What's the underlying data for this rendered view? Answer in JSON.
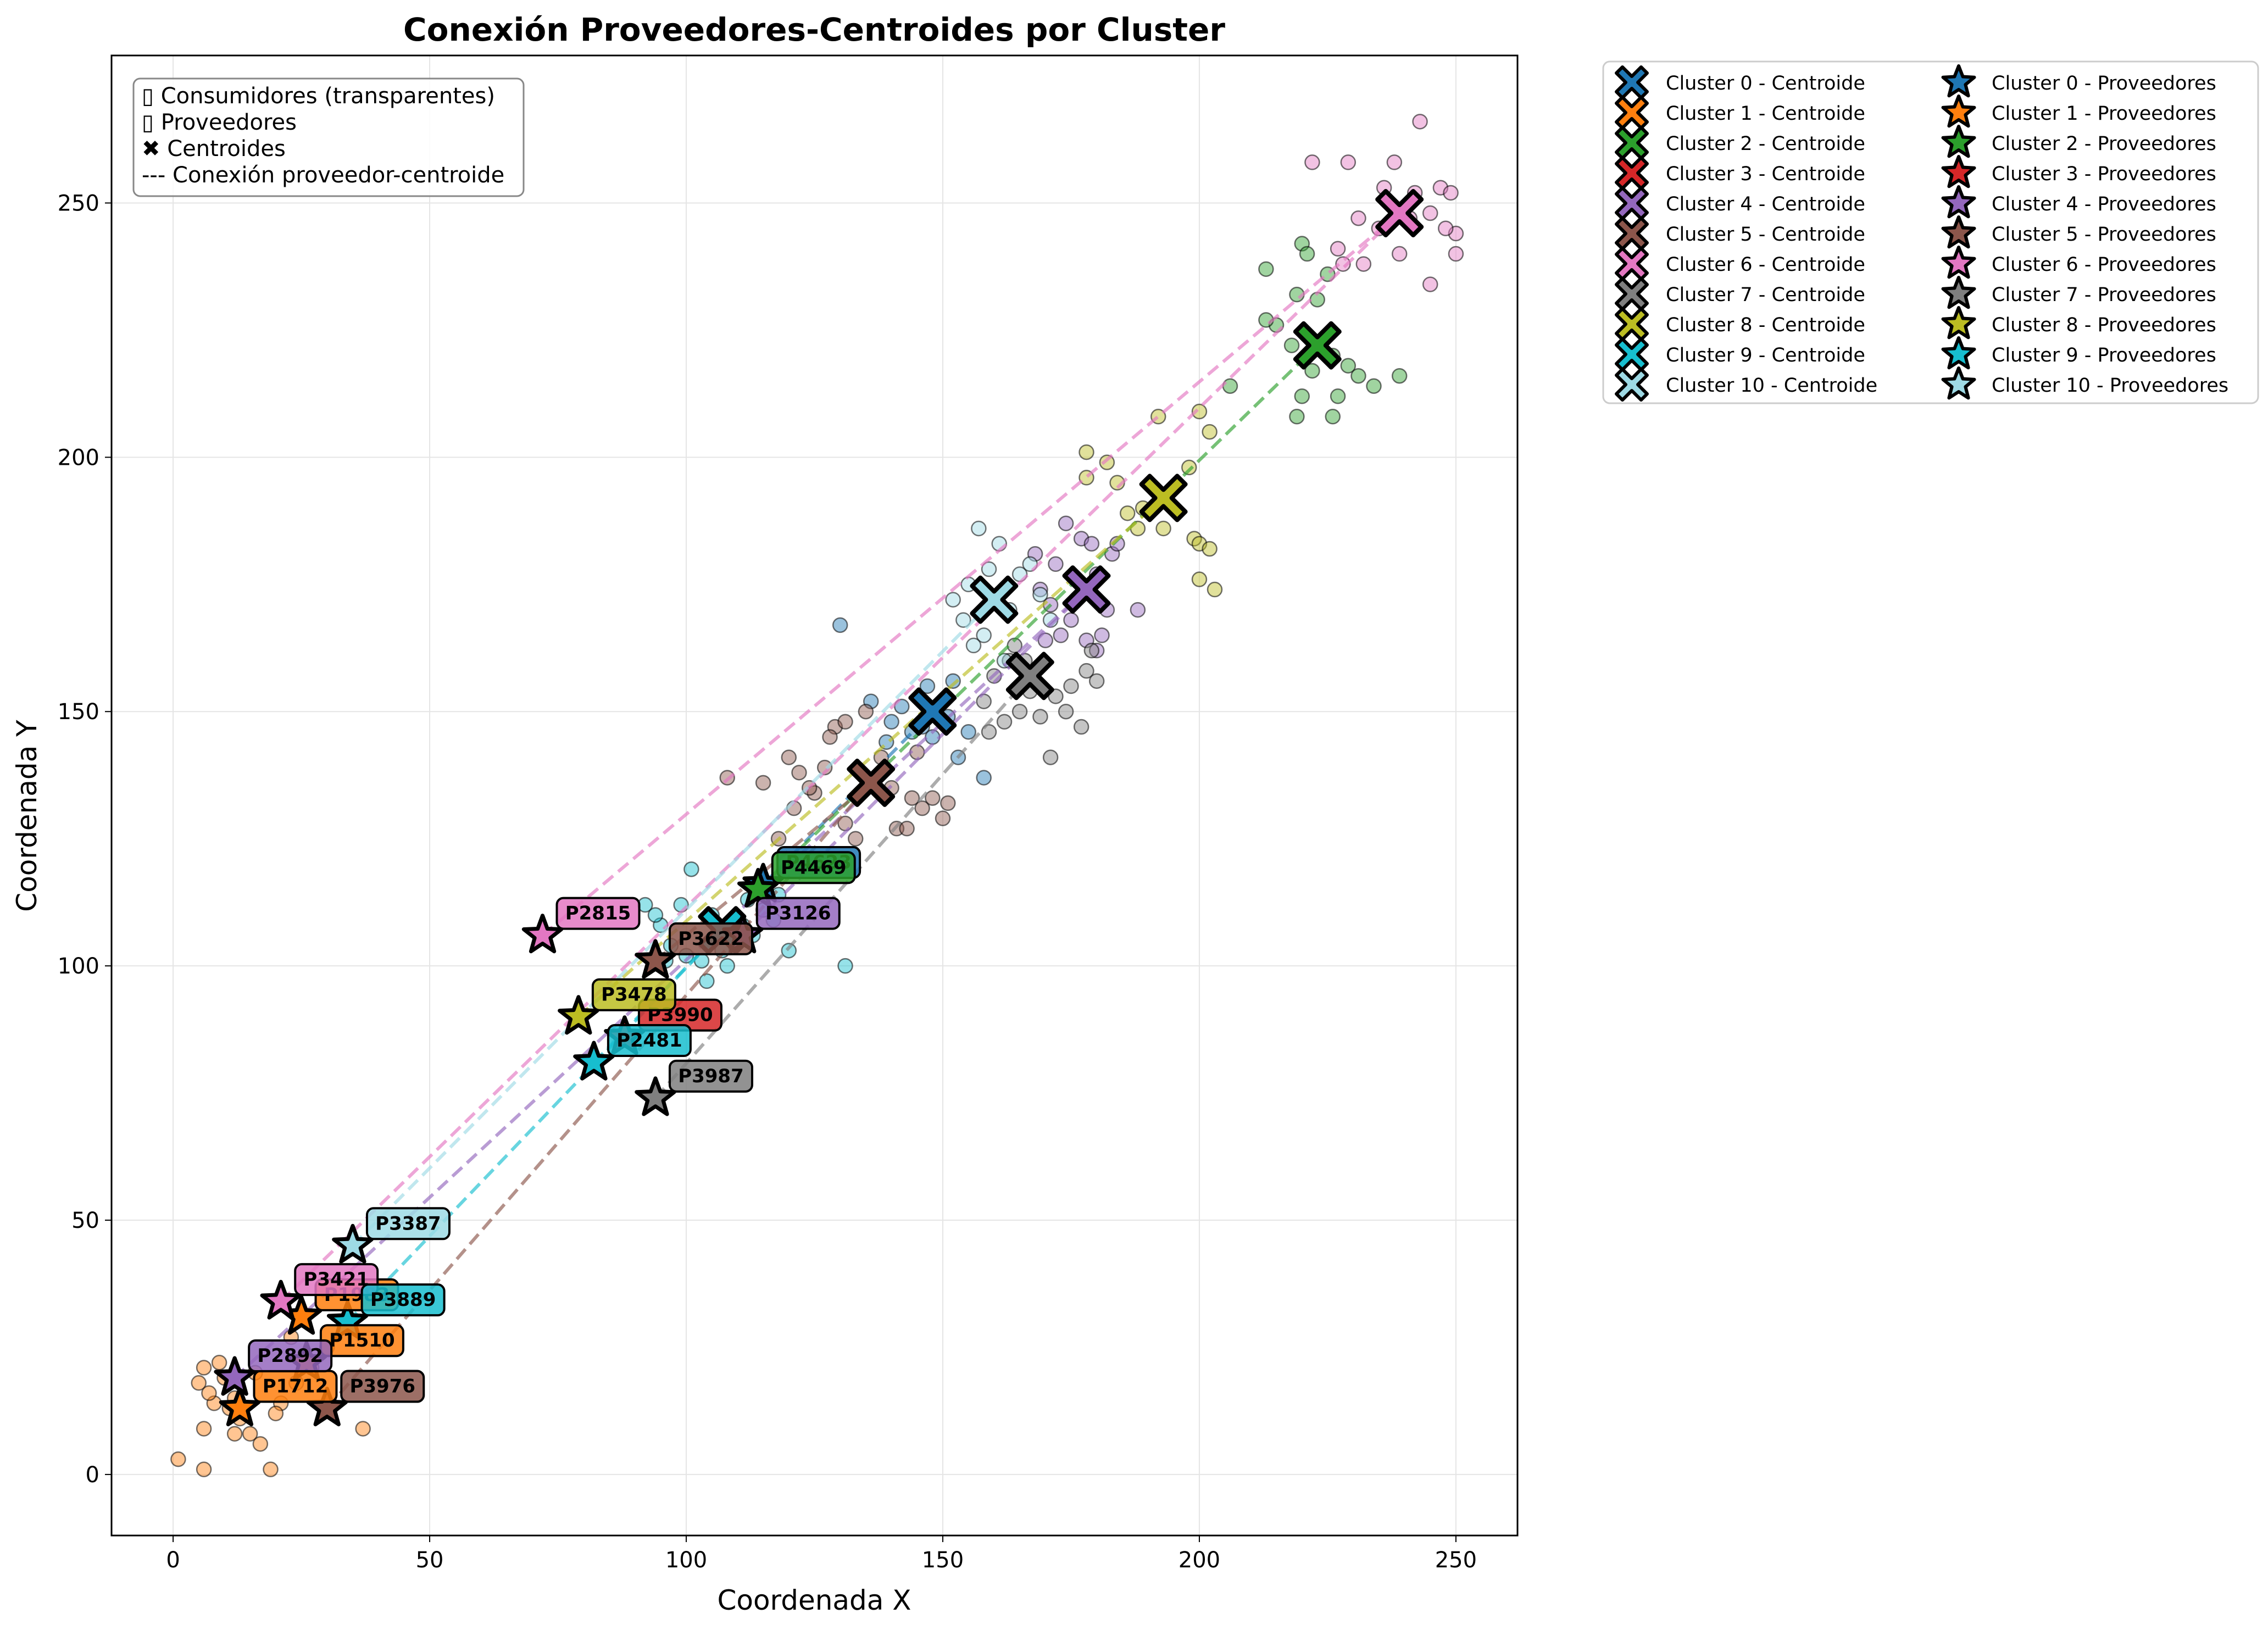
{
  "chart_data": {
    "type": "scatter",
    "title": "Conexión Proveedores-Centroides por Cluster",
    "xlabel": "Coordenada X",
    "ylabel": "Coordenada Y",
    "xlim": [
      -12,
      262
    ],
    "ylim": [
      -12,
      279
    ],
    "x_ticks": [
      "0",
      "50",
      "100",
      "150",
      "200",
      "250"
    ],
    "y_ticks": [
      "0",
      "50",
      "100",
      "150",
      "200",
      "250"
    ],
    "grid": true,
    "notes": [
      "▯ Consumidores (transparentes)",
      "▯ Proveedores",
      "✖ Centroides",
      "--- Conexión proveedor-centroide"
    ],
    "notes_placement": "top-left",
    "legend_placement": "outside-right",
    "clusters": [
      {
        "id": 0,
        "color": "#1f77b4",
        "centroid_label": "Cluster 0 - Centroide",
        "provider_label": "Cluster 0 - Proveedores",
        "centroid": [
          148,
          150
        ],
        "providers": [
          {
            "id": "P4623",
            "x": 115,
            "y": 116
          }
        ],
        "consumers": [
          [
            130,
            167
          ],
          [
            136,
            152
          ],
          [
            140,
            148
          ],
          [
            144,
            146
          ],
          [
            146,
            147
          ],
          [
            148,
            145
          ],
          [
            150,
            152
          ],
          [
            153,
            141
          ],
          [
            155,
            146
          ],
          [
            158,
            137
          ],
          [
            152,
            156
          ],
          [
            147,
            155
          ],
          [
            142,
            151
          ],
          [
            151,
            149
          ],
          [
            139,
            144
          ]
        ]
      },
      {
        "id": 1,
        "color": "#ff7f0e",
        "centroid_label": "Cluster 1 - Centroide",
        "provider_label": "Cluster 1 - Proveedores",
        "centroid": null,
        "providers": [
          {
            "id": "P1712",
            "x": 13,
            "y": 13
          },
          {
            "id": "P1510",
            "x": 26,
            "y": 22
          },
          {
            "id": "P1983",
            "x": 25,
            "y": 31
          }
        ],
        "consumers": [
          [
            1,
            3
          ],
          [
            6,
            1
          ],
          [
            6,
            9
          ],
          [
            5,
            18
          ],
          [
            6,
            21
          ],
          [
            9,
            22
          ],
          [
            10,
            19
          ],
          [
            12,
            15
          ],
          [
            13,
            11
          ],
          [
            8,
            14
          ],
          [
            15,
            8
          ],
          [
            17,
            6
          ],
          [
            19,
            1
          ],
          [
            21,
            14
          ],
          [
            24,
            18
          ],
          [
            27,
            21
          ],
          [
            30,
            25
          ],
          [
            37,
            9
          ],
          [
            11,
            13
          ],
          [
            7,
            16
          ],
          [
            12,
            8
          ],
          [
            20,
            12
          ],
          [
            16,
            20
          ],
          [
            23,
            27
          ]
        ]
      },
      {
        "id": 2,
        "color": "#2ca02c",
        "centroid_label": "Cluster 2 - Centroide",
        "provider_label": "Cluster 2 - Proveedores",
        "centroid": [
          223,
          222
        ],
        "providers": [
          {
            "id": "P4469",
            "x": 114,
            "y": 115
          }
        ],
        "consumers": [
          [
            213,
            237
          ],
          [
            215,
            226
          ],
          [
            219,
            232
          ],
          [
            220,
            242
          ],
          [
            221,
            240
          ],
          [
            223,
            231
          ],
          [
            225,
            236
          ],
          [
            226,
            220
          ],
          [
            227,
            212
          ],
          [
            229,
            218
          ],
          [
            231,
            216
          ],
          [
            234,
            214
          ],
          [
            239,
            216
          ],
          [
            220,
            212
          ],
          [
            219,
            208
          ],
          [
            222,
            217
          ],
          [
            226,
            208
          ],
          [
            206,
            214
          ],
          [
            213,
            227
          ],
          [
            218,
            222
          ]
        ]
      },
      {
        "id": 3,
        "color": "#d62728",
        "centroid_label": "Cluster 3 - Centroide",
        "provider_label": "Cluster 3 - Proveedores",
        "centroid": null,
        "providers": [
          {
            "id": "P3990",
            "x": 88,
            "y": 86
          }
        ],
        "consumers": []
      },
      {
        "id": 4,
        "color": "#9467bd",
        "centroid_label": "Cluster 4 - Centroide",
        "provider_label": "Cluster 4 - Proveedores",
        "centroid": [
          178,
          174
        ],
        "providers": [
          {
            "id": "P3126",
            "x": 111,
            "y": 106
          },
          {
            "id": "P2892",
            "x": 12,
            "y": 19
          }
        ],
        "consumers": [
          [
            168,
            181
          ],
          [
            172,
            179
          ],
          [
            174,
            187
          ],
          [
            176,
            176
          ],
          [
            177,
            184
          ],
          [
            179,
            183
          ],
          [
            180,
            177
          ],
          [
            181,
            165
          ],
          [
            183,
            181
          ],
          [
            184,
            183
          ],
          [
            188,
            170
          ],
          [
            171,
            171
          ],
          [
            175,
            168
          ],
          [
            169,
            174
          ],
          [
            178,
            164
          ],
          [
            180,
            162
          ],
          [
            173,
            165
          ],
          [
            165,
            159
          ],
          [
            170,
            164
          ],
          [
            182,
            170
          ]
        ]
      },
      {
        "id": 5,
        "color": "#8c564b",
        "centroid_label": "Cluster 5 - Centroide",
        "provider_label": "Cluster 5 - Proveedores",
        "centroid": [
          136,
          136
        ],
        "providers": [
          {
            "id": "P3622",
            "x": 94,
            "y": 101
          },
          {
            "id": "P3976",
            "x": 30,
            "y": 13
          }
        ],
        "consumers": [
          [
            108,
            137
          ],
          [
            115,
            136
          ],
          [
            120,
            141
          ],
          [
            122,
            138
          ],
          [
            125,
            134
          ],
          [
            127,
            139
          ],
          [
            129,
            147
          ],
          [
            131,
            148
          ],
          [
            133,
            125
          ],
          [
            141,
            127
          ],
          [
            143,
            127
          ],
          [
            144,
            133
          ],
          [
            146,
            131
          ],
          [
            148,
            133
          ],
          [
            150,
            129
          ],
          [
            151,
            132
          ],
          [
            118,
            125
          ],
          [
            121,
            131
          ],
          [
            128,
            145
          ],
          [
            135,
            150
          ],
          [
            138,
            141
          ],
          [
            140,
            135
          ],
          [
            131,
            128
          ],
          [
            145,
            142
          ],
          [
            124,
            135
          ]
        ]
      },
      {
        "id": 6,
        "color": "#e377c2",
        "centroid_label": "Cluster 6 - Centroide",
        "provider_label": "Cluster 6 - Proveedores",
        "centroid": [
          239,
          248
        ],
        "providers": [
          {
            "id": "P2815",
            "x": 72,
            "y": 106
          },
          {
            "id": "P3421",
            "x": 21,
            "y": 34
          }
        ],
        "consumers": [
          [
            222,
            258
          ],
          [
            229,
            258
          ],
          [
            238,
            258
          ],
          [
            243,
            266
          ],
          [
            236,
            253
          ],
          [
            241,
            247
          ],
          [
            242,
            252
          ],
          [
            245,
            248
          ],
          [
            247,
            253
          ],
          [
            249,
            252
          ],
          [
            250,
            244
          ],
          [
            250,
            240
          ],
          [
            239,
            240
          ],
          [
            231,
            247
          ],
          [
            232,
            238
          ],
          [
            228,
            238
          ],
          [
            227,
            241
          ],
          [
            245,
            234
          ],
          [
            248,
            245
          ],
          [
            235,
            245
          ]
        ]
      },
      {
        "id": 7,
        "color": "#7f7f7f",
        "centroid_label": "Cluster 7 - Centroide",
        "provider_label": "Cluster 7 - Proveedores",
        "centroid": [
          167,
          157
        ],
        "providers": [
          {
            "id": "P3987",
            "x": 94,
            "y": 74
          }
        ],
        "consumers": [
          [
            158,
            152
          ],
          [
            160,
            157
          ],
          [
            162,
            148
          ],
          [
            163,
            160
          ],
          [
            165,
            150
          ],
          [
            167,
            154
          ],
          [
            169,
            149
          ],
          [
            171,
            141
          ],
          [
            172,
            153
          ],
          [
            174,
            150
          ],
          [
            177,
            147
          ],
          [
            178,
            158
          ],
          [
            179,
            162
          ],
          [
            180,
            156
          ],
          [
            164,
            163
          ],
          [
            159,
            146
          ],
          [
            166,
            160
          ],
          [
            175,
            155
          ]
        ]
      },
      {
        "id": 8,
        "color": "#bcbd22",
        "centroid_label": "Cluster 8 - Centroide",
        "provider_label": "Cluster 8 - Proveedores",
        "centroid": [
          193,
          192
        ],
        "providers": [
          {
            "id": "P3478",
            "x": 79,
            "y": 90
          }
        ],
        "consumers": [
          [
            178,
            201
          ],
          [
            178,
            196
          ],
          [
            182,
            199
          ],
          [
            186,
            189
          ],
          [
            189,
            190
          ],
          [
            192,
            208
          ],
          [
            193,
            186
          ],
          [
            198,
            198
          ],
          [
            200,
            209
          ],
          [
            202,
            205
          ],
          [
            199,
            184
          ],
          [
            200,
            183
          ],
          [
            202,
            182
          ],
          [
            203,
            174
          ],
          [
            200,
            176
          ],
          [
            188,
            186
          ],
          [
            184,
            195
          ],
          [
            195,
            190
          ]
        ]
      },
      {
        "id": 9,
        "color": "#17becf",
        "centroid_label": "Cluster 9 - Centroide",
        "provider_label": "Cluster 9 - Proveedores",
        "centroid": [
          107,
          107
        ],
        "providers": [
          {
            "id": "P2481",
            "x": 82,
            "y": 81
          },
          {
            "id": "P3889",
            "x": 34,
            "y": 30
          }
        ],
        "consumers": [
          [
            92,
            112
          ],
          [
            95,
            108
          ],
          [
            97,
            104
          ],
          [
            100,
            102
          ],
          [
            101,
            119
          ],
          [
            103,
            101
          ],
          [
            105,
            110
          ],
          [
            107,
            103
          ],
          [
            109,
            105
          ],
          [
            111,
            108
          ],
          [
            113,
            106
          ],
          [
            115,
            111
          ],
          [
            117,
            109
          ],
          [
            120,
            103
          ],
          [
            131,
            100
          ],
          [
            94,
            110
          ],
          [
            99,
            112
          ],
          [
            104,
            97
          ],
          [
            108,
            100
          ],
          [
            112,
            113
          ],
          [
            118,
            114
          ],
          [
            96,
            101
          ]
        ]
      },
      {
        "id": 10,
        "color": "#9edae5",
        "centroid_label": "Cluster 10 - Centroide",
        "provider_label": "Cluster 10 - Proveedores",
        "centroid": [
          160,
          172
        ],
        "providers": [
          {
            "id": "P3387",
            "x": 35,
            "y": 45
          }
        ],
        "consumers": [
          [
            152,
            172
          ],
          [
            155,
            175
          ],
          [
            157,
            186
          ],
          [
            159,
            178
          ],
          [
            161,
            183
          ],
          [
            163,
            170
          ],
          [
            165,
            177
          ],
          [
            167,
            179
          ],
          [
            169,
            173
          ],
          [
            171,
            168
          ],
          [
            158,
            165
          ],
          [
            154,
            168
          ],
          [
            162,
            160
          ],
          [
            156,
            163
          ]
        ]
      }
    ]
  }
}
